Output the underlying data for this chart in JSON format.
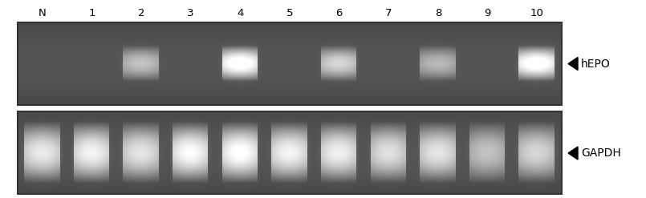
{
  "fig_width": 8.05,
  "fig_height": 2.47,
  "dpi": 100,
  "background_color": "#ffffff",
  "lane_labels": [
    "N",
    "1",
    "2",
    "3",
    "4",
    "5",
    "6",
    "7",
    "8",
    "9",
    "10"
  ],
  "gel_bg_dark": 80,
  "gel_bg_mid": 100,
  "top_panel": {
    "label": "hEPO",
    "bands_present": [
      2,
      4,
      6,
      8,
      10
    ],
    "band_intensity": {
      "2": 0.55,
      "4": 0.95,
      "6": 0.65,
      "8": 0.5,
      "10": 0.95
    }
  },
  "bottom_panel": {
    "label": "GAPDH",
    "bands_present": [
      0,
      1,
      2,
      3,
      4,
      5,
      6,
      7,
      8,
      9,
      10
    ],
    "band_intensity": {
      "0": 0.75,
      "1": 0.8,
      "2": 0.72,
      "3": 0.85,
      "4": 0.88,
      "5": 0.8,
      "6": 0.78,
      "7": 0.7,
      "8": 0.72,
      "9": 0.55,
      "10": 0.65
    }
  },
  "num_lanes": 11,
  "label_fontsize": 9.5,
  "arrow_fontsize": 10
}
